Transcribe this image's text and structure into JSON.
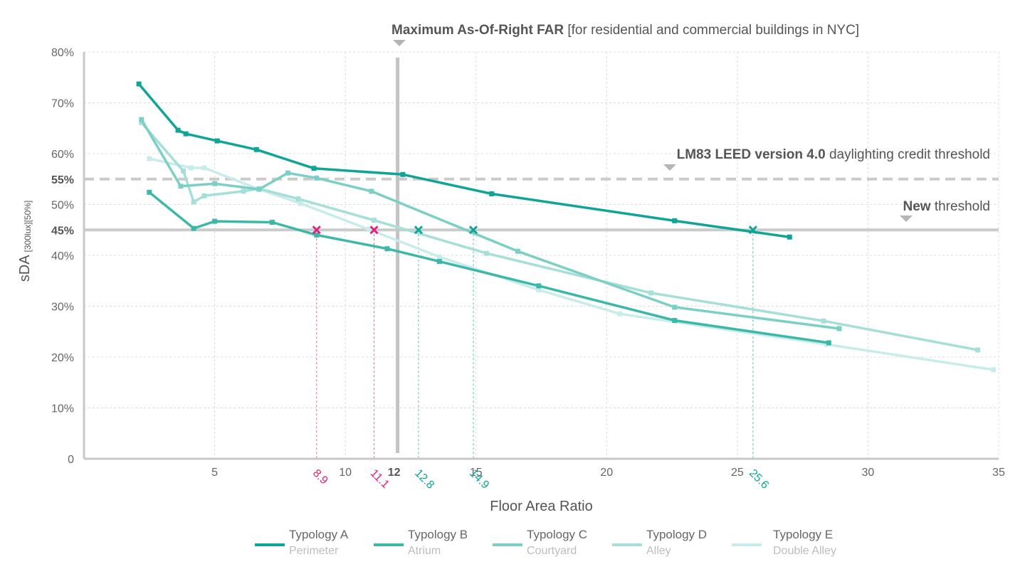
{
  "chart_data": {
    "type": "line",
    "title": "",
    "xlabel": "Floor Area Ratio",
    "ylabel": "sDA",
    "ylabel_subscript": "[300lux][50%]",
    "xlim": [
      0,
      35
    ],
    "ylim": [
      0,
      80
    ],
    "x_ticks": [
      "5",
      "10",
      "15",
      "20",
      "25",
      "30",
      "35"
    ],
    "y_ticks": [
      "0",
      "10%",
      "20%",
      "30%",
      "40%",
      "45%",
      "50%",
      "55%",
      "60%",
      "70%",
      "80%"
    ],
    "grid": true,
    "colors": {
      "a": "#0ea597",
      "b": "#3cb8a9",
      "c": "#7ccfc5",
      "d": "#a5dfd8",
      "e": "#c8ecea",
      "threshold_line": "#cbcbcb",
      "max_far_line": "#c4c4c4",
      "highlight_pink": "#e3217a",
      "highlight_teal": "#0ea597"
    },
    "series": [
      {
        "name": "Typology A",
        "subtitle": "Perimeter",
        "x": [
          2.1,
          3.6,
          3.9,
          5.1,
          6.6,
          8.8,
          12.2,
          15.6,
          22.6,
          27
        ],
        "y": [
          73.7,
          64.6,
          63.9,
          62.5,
          60.8,
          57.1,
          55.9,
          52.1,
          46.8,
          43.6
        ]
      },
      {
        "name": "Typology B",
        "subtitle": "Atrium",
        "x": [
          2.5,
          4.2,
          5.0,
          7.2,
          8.9,
          11.6,
          13.6,
          17.4,
          22.6,
          28.5
        ],
        "y": [
          52.4,
          45.3,
          46.7,
          46.5,
          44.0,
          41.3,
          38.8,
          34.0,
          27.2,
          22.8
        ]
      },
      {
        "name": "Typology C",
        "subtitle": "Courtyard",
        "x": [
          2.2,
          3.7,
          5.0,
          6.7,
          7.8,
          8.9,
          11.0,
          16.6,
          22.6,
          28.9
        ],
        "y": [
          66.7,
          53.6,
          54.1,
          53.0,
          56.2,
          55.2,
          52.6,
          40.8,
          29.8,
          25.6
        ]
      },
      {
        "name": "Typology D",
        "subtitle": "Alley",
        "x": [
          2.2,
          3.8,
          4.2,
          4.6,
          6.1,
          6.7,
          8.2,
          11.1,
          15.4,
          21.7,
          28.3,
          34.2
        ],
        "y": [
          66.1,
          56.6,
          50.5,
          51.7,
          52.6,
          53.1,
          51.1,
          46.9,
          40.4,
          32.6,
          27.1,
          21.4
        ]
      },
      {
        "name": "Typology E",
        "subtitle": "Double Alley",
        "x": [
          2.5,
          4.1,
          4.6,
          6.7,
          8.3,
          10.9,
          13.6,
          17.4,
          20.5,
          28.4,
          34.8
        ],
        "y": [
          59.0,
          57.2,
          57.2,
          53.0,
          50.2,
          45.1,
          39.7,
          33.2,
          28.5,
          22.5,
          17.5
        ]
      }
    ],
    "reference_lines": {
      "max_far": {
        "x": 12,
        "label_bold": "Maximum As-Of-Right FAR",
        "label_rest": " [for residential and commercial buildings in NYC]"
      },
      "leed": {
        "y": 55,
        "label_bold": "LM83 LEED version 4.0",
        "label_rest": " daylighting credit threshold"
      },
      "new": {
        "y": 45,
        "label_bold": "New",
        "label_rest": " threshold"
      }
    },
    "intersections": [
      {
        "x": 8.9,
        "label": "8.9",
        "color": "#e3217a"
      },
      {
        "x": 11.1,
        "label": "11.1",
        "color": "#e3217a"
      },
      {
        "x": 12.8,
        "label": "12.8",
        "color": "#0ea597"
      },
      {
        "x": 14.9,
        "label": "14.9",
        "color": "#0ea597"
      },
      {
        "x": 25.6,
        "label": "25.6",
        "color": "#0ea597"
      }
    ],
    "bold_x_label": "12",
    "legend_position": "bottom"
  }
}
